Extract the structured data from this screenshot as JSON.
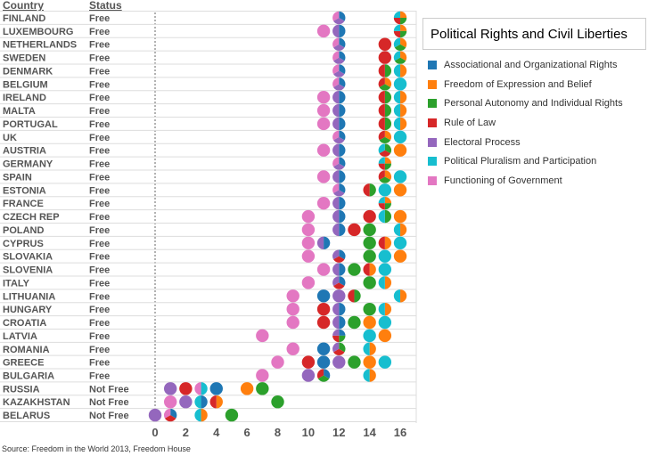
{
  "chart_data": {
    "type": "scatter",
    "subtype": "dot-plot-with-pie-markers",
    "column_headers": {
      "country": "Country",
      "status": "Status"
    },
    "x_ticks": [
      0,
      2,
      4,
      6,
      8,
      10,
      12,
      14,
      16
    ],
    "xlim": [
      0,
      17
    ],
    "legend": {
      "title": "Political Rights and Civil Liberties",
      "placement": "right",
      "items": [
        {
          "key": "A",
          "label": "Associational and Organizational Rights",
          "color": "#1f77b4"
        },
        {
          "key": "F",
          "label": "Freedom of Expression and Belief",
          "color": "#ff7f0e"
        },
        {
          "key": "P",
          "label": "Personal Autonomy and Individual Rights",
          "color": "#2ca02c"
        },
        {
          "key": "R",
          "label": "Rule of Law",
          "color": "#d62728"
        },
        {
          "key": "E",
          "label": "Electoral Process",
          "color": "#9467bd"
        },
        {
          "key": "L",
          "label": "Political Pluralism and Participation",
          "color": "#17becf"
        },
        {
          "key": "G",
          "label": "Functioning of Government",
          "color": "#e377c2"
        }
      ]
    },
    "rows": [
      {
        "country": "FINLAND",
        "status": "Free",
        "dots": [
          [
            12,
            "AEG"
          ],
          [
            16,
            "FPRL"
          ]
        ]
      },
      {
        "country": "LUXEMBOURG",
        "status": "Free",
        "dots": [
          [
            11,
            "G"
          ],
          [
            12,
            "AE"
          ],
          [
            16,
            "FPRL"
          ]
        ]
      },
      {
        "country": "NETHERLANDS",
        "status": "Free",
        "dots": [
          [
            12,
            "AEG"
          ],
          [
            15,
            "R"
          ],
          [
            16,
            "FPL"
          ]
        ]
      },
      {
        "country": "SWEDEN",
        "status": "Free",
        "dots": [
          [
            12,
            "AEG"
          ],
          [
            15,
            "R"
          ],
          [
            16,
            "FPL"
          ]
        ]
      },
      {
        "country": "DENMARK",
        "status": "Free",
        "dots": [
          [
            12,
            "AEG"
          ],
          [
            15,
            "PR"
          ],
          [
            16,
            "FL"
          ]
        ]
      },
      {
        "country": "BELGIUM",
        "status": "Free",
        "dots": [
          [
            12,
            "AEG"
          ],
          [
            15,
            "FPR"
          ],
          [
            16,
            "L"
          ]
        ]
      },
      {
        "country": "IRELAND",
        "status": "Free",
        "dots": [
          [
            11,
            "G"
          ],
          [
            12,
            "AE"
          ],
          [
            15,
            "PR"
          ],
          [
            16,
            "FL"
          ]
        ]
      },
      {
        "country": "MALTA",
        "status": "Free",
        "dots": [
          [
            11,
            "G"
          ],
          [
            12,
            "AE"
          ],
          [
            15,
            "PR"
          ],
          [
            16,
            "FL"
          ]
        ]
      },
      {
        "country": "PORTUGAL",
        "status": "Free",
        "dots": [
          [
            11,
            "G"
          ],
          [
            12,
            "AE"
          ],
          [
            15,
            "PR"
          ],
          [
            16,
            "FL"
          ]
        ]
      },
      {
        "country": "UK",
        "status": "Free",
        "dots": [
          [
            12,
            "AEG"
          ],
          [
            15,
            "FPR"
          ],
          [
            16,
            "L"
          ]
        ]
      },
      {
        "country": "AUSTRIA",
        "status": "Free",
        "dots": [
          [
            11,
            "G"
          ],
          [
            12,
            "AE"
          ],
          [
            15,
            "PRL"
          ],
          [
            16,
            "F"
          ]
        ]
      },
      {
        "country": "GERMANY",
        "status": "Free",
        "dots": [
          [
            12,
            "AEG"
          ],
          [
            15,
            "FPRL"
          ]
        ]
      },
      {
        "country": "SPAIN",
        "status": "Free",
        "dots": [
          [
            11,
            "G"
          ],
          [
            12,
            "AE"
          ],
          [
            15,
            "FPR"
          ],
          [
            16,
            "L"
          ]
        ]
      },
      {
        "country": "ESTONIA",
        "status": "Free",
        "dots": [
          [
            12,
            "AEG"
          ],
          [
            14,
            "PR"
          ],
          [
            15,
            "L"
          ],
          [
            16,
            "F"
          ]
        ]
      },
      {
        "country": "FRANCE",
        "status": "Free",
        "dots": [
          [
            11,
            "G"
          ],
          [
            12,
            "AE"
          ],
          [
            15,
            "FPRL"
          ]
        ]
      },
      {
        "country": "CZECH REP",
        "status": "Free",
        "dots": [
          [
            10,
            "G"
          ],
          [
            12,
            "AE"
          ],
          [
            14,
            "R"
          ],
          [
            15,
            "PL"
          ],
          [
            16,
            "F"
          ]
        ]
      },
      {
        "country": "POLAND",
        "status": "Free",
        "dots": [
          [
            10,
            "G"
          ],
          [
            12,
            "AE"
          ],
          [
            13,
            "R"
          ],
          [
            14,
            "P"
          ],
          [
            16,
            "FL"
          ]
        ]
      },
      {
        "country": "CYPRUS",
        "status": "Free",
        "dots": [
          [
            10,
            "G"
          ],
          [
            11,
            "AE"
          ],
          [
            14,
            "P"
          ],
          [
            15,
            "FR"
          ],
          [
            16,
            "L"
          ]
        ]
      },
      {
        "country": "SLOVAKIA",
        "status": "Free",
        "dots": [
          [
            10,
            "G"
          ],
          [
            12,
            "ARE"
          ],
          [
            14,
            "P"
          ],
          [
            15,
            "L"
          ],
          [
            16,
            "F"
          ]
        ]
      },
      {
        "country": "SLOVENIA",
        "status": "Free",
        "dots": [
          [
            11,
            "G"
          ],
          [
            12,
            "AE"
          ],
          [
            13,
            "P"
          ],
          [
            14,
            "FR"
          ],
          [
            15,
            "L"
          ]
        ]
      },
      {
        "country": "ITALY",
        "status": "Free",
        "dots": [
          [
            10,
            "G"
          ],
          [
            12,
            "ARE"
          ],
          [
            14,
            "P"
          ],
          [
            15,
            "FL"
          ]
        ]
      },
      {
        "country": "LITHUANIA",
        "status": "Free",
        "dots": [
          [
            9,
            "G"
          ],
          [
            11,
            "A"
          ],
          [
            12,
            "E"
          ],
          [
            13,
            "PR"
          ],
          [
            16,
            "FL"
          ]
        ]
      },
      {
        "country": "HUNGARY",
        "status": "Free",
        "dots": [
          [
            9,
            "G"
          ],
          [
            11,
            "R"
          ],
          [
            12,
            "AE"
          ],
          [
            14,
            "P"
          ],
          [
            15,
            "FL"
          ]
        ]
      },
      {
        "country": "CROATIA",
        "status": "Free",
        "dots": [
          [
            9,
            "G"
          ],
          [
            11,
            "R"
          ],
          [
            12,
            "AE"
          ],
          [
            13,
            "P"
          ],
          [
            14,
            "F"
          ],
          [
            15,
            "L"
          ]
        ]
      },
      {
        "country": "LATVIA",
        "status": "Free",
        "dots": [
          [
            7,
            "G"
          ],
          [
            12,
            "APRE"
          ],
          [
            14,
            "L"
          ],
          [
            15,
            "F"
          ]
        ]
      },
      {
        "country": "ROMANIA",
        "status": "Free",
        "dots": [
          [
            9,
            "G"
          ],
          [
            11,
            "A"
          ],
          [
            12,
            "PRE"
          ],
          [
            14,
            "FL"
          ]
        ]
      },
      {
        "country": "GREECE",
        "status": "Free",
        "dots": [
          [
            8,
            "G"
          ],
          [
            10,
            "R"
          ],
          [
            11,
            "A"
          ],
          [
            12,
            "E"
          ],
          [
            13,
            "P"
          ],
          [
            14,
            "F"
          ],
          [
            15,
            "L"
          ]
        ]
      },
      {
        "country": "BULGARIA",
        "status": "Free",
        "dots": [
          [
            7,
            "G"
          ],
          [
            10,
            "E"
          ],
          [
            11,
            "APR"
          ],
          [
            14,
            "FL"
          ]
        ]
      },
      {
        "country": "RUSSIA",
        "status": "Not Free",
        "dots": [
          [
            1,
            "E"
          ],
          [
            2,
            "R"
          ],
          [
            3,
            "LG"
          ],
          [
            4,
            "A"
          ],
          [
            6,
            "F"
          ],
          [
            7,
            "P"
          ]
        ]
      },
      {
        "country": "KAZAKHSTAN",
        "status": "Not Free",
        "dots": [
          [
            1,
            "G"
          ],
          [
            2,
            "E"
          ],
          [
            3,
            "AL"
          ],
          [
            4,
            "FR"
          ],
          [
            8,
            "P"
          ]
        ]
      },
      {
        "country": "BELARUS",
        "status": "Not Free",
        "dots": [
          [
            0,
            "E"
          ],
          [
            1,
            "ARG"
          ],
          [
            3,
            "FL"
          ],
          [
            5,
            "P"
          ]
        ]
      }
    ]
  },
  "source": "Source: Freedom in the World 2013, Freedom House"
}
